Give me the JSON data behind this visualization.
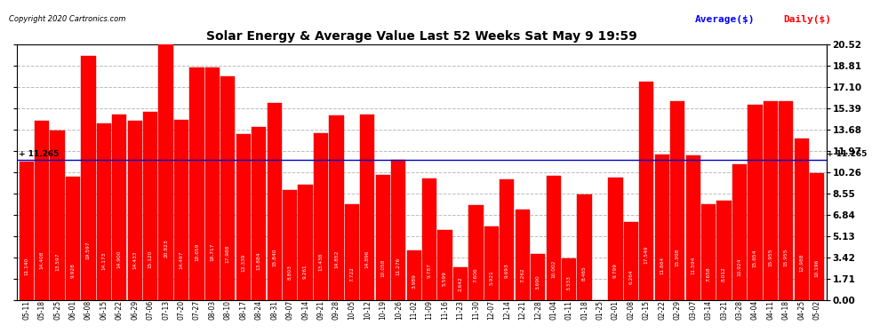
{
  "title": "Solar Energy & Average Value Last 52 Weeks Sat May 9 19:59",
  "copyright": "Copyright 2020 Cartronics.com",
  "legend_average": "Average($)",
  "legend_daily": "Daily($)",
  "average_value": 11.265,
  "bar_color": "#ff0000",
  "average_line_color": "#0000cd",
  "background_color": "#ffffff",
  "grid_color": "#bbbbbb",
  "ylim": [
    0,
    20.52
  ],
  "yticks": [
    0.0,
    1.71,
    3.42,
    5.13,
    6.84,
    8.55,
    10.26,
    11.97,
    13.68,
    15.39,
    17.1,
    18.81,
    20.52
  ],
  "categories": [
    "05-11",
    "05-18",
    "05-25",
    "06-01",
    "06-08",
    "06-15",
    "06-22",
    "06-29",
    "07-06",
    "07-13",
    "07-20",
    "07-27",
    "08-03",
    "08-10",
    "08-17",
    "08-24",
    "08-31",
    "09-07",
    "09-14",
    "09-21",
    "09-28",
    "10-05",
    "10-12",
    "10-19",
    "10-26",
    "11-02",
    "11-09",
    "11-16",
    "11-23",
    "11-30",
    "12-07",
    "12-14",
    "12-21",
    "12-28",
    "01-04",
    "01-11",
    "01-18",
    "01-25",
    "02-01",
    "02-08",
    "02-15",
    "02-22",
    "02-29",
    "03-07",
    "03-14",
    "03-21",
    "03-28",
    "04-04",
    "04-11",
    "04-18",
    "04-25",
    "05-02"
  ],
  "values": [
    11.14,
    14.408,
    13.597,
    9.928,
    19.597,
    14.173,
    14.9,
    14.433,
    15.12,
    20.823,
    14.497,
    18.659,
    18.717,
    17.988,
    13.339,
    13.884,
    15.84,
    8.803,
    9.261,
    13.438,
    14.852,
    7.722,
    14.896,
    10.058,
    11.276,
    3.989,
    9.787,
    5.599,
    2.642,
    7.606,
    5.921,
    9.693,
    7.262,
    3.69,
    10.002,
    3.333,
    8.465,
    0.008,
    9.799,
    6.264,
    17.549,
    11.664,
    15.998,
    11.594,
    7.658,
    8.012,
    10.924,
    15.654,
    15.955,
    15.955,
    12.988,
    10.196
  ]
}
